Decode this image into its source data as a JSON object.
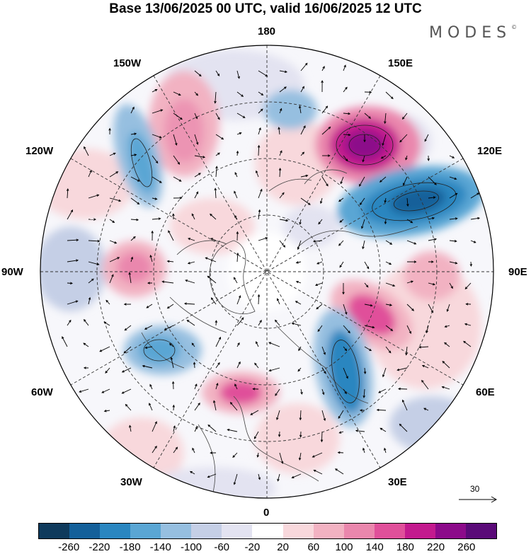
{
  "title": "Base 13/06/2025 00 UTC, valid 16/06/2025 12 UTC",
  "logo": "MODES",
  "logo_mark": "©",
  "longitude_labels": {
    "top": "180",
    "bottom": "0",
    "left": "90W",
    "right": "90E",
    "upper_left_1": "150W",
    "upper_left_2": "120W",
    "upper_right_1": "150E",
    "upper_right_2": "120E",
    "lower_left_1": "60W",
    "lower_left_2": "30W",
    "lower_right_1": "60E",
    "lower_right_2": "30E"
  },
  "reference_vector": "30",
  "colorbar": {
    "ticks": [
      "-260",
      "-220",
      "-180",
      "-140",
      "-100",
      "-60",
      "-20",
      "20",
      "60",
      "100",
      "140",
      "180",
      "220",
      "260"
    ],
    "colors": [
      "#0f3a5c",
      "#14609a",
      "#2a86c0",
      "#5aa6d4",
      "#96bfe0",
      "#c5cfe6",
      "#e3e3f1",
      "#ffffff",
      "#f8d8dc",
      "#f2b2c2",
      "#ea87ad",
      "#e0509a",
      "#c31a8e",
      "#8c0a8a",
      "#5a0a78"
    ]
  }
}
